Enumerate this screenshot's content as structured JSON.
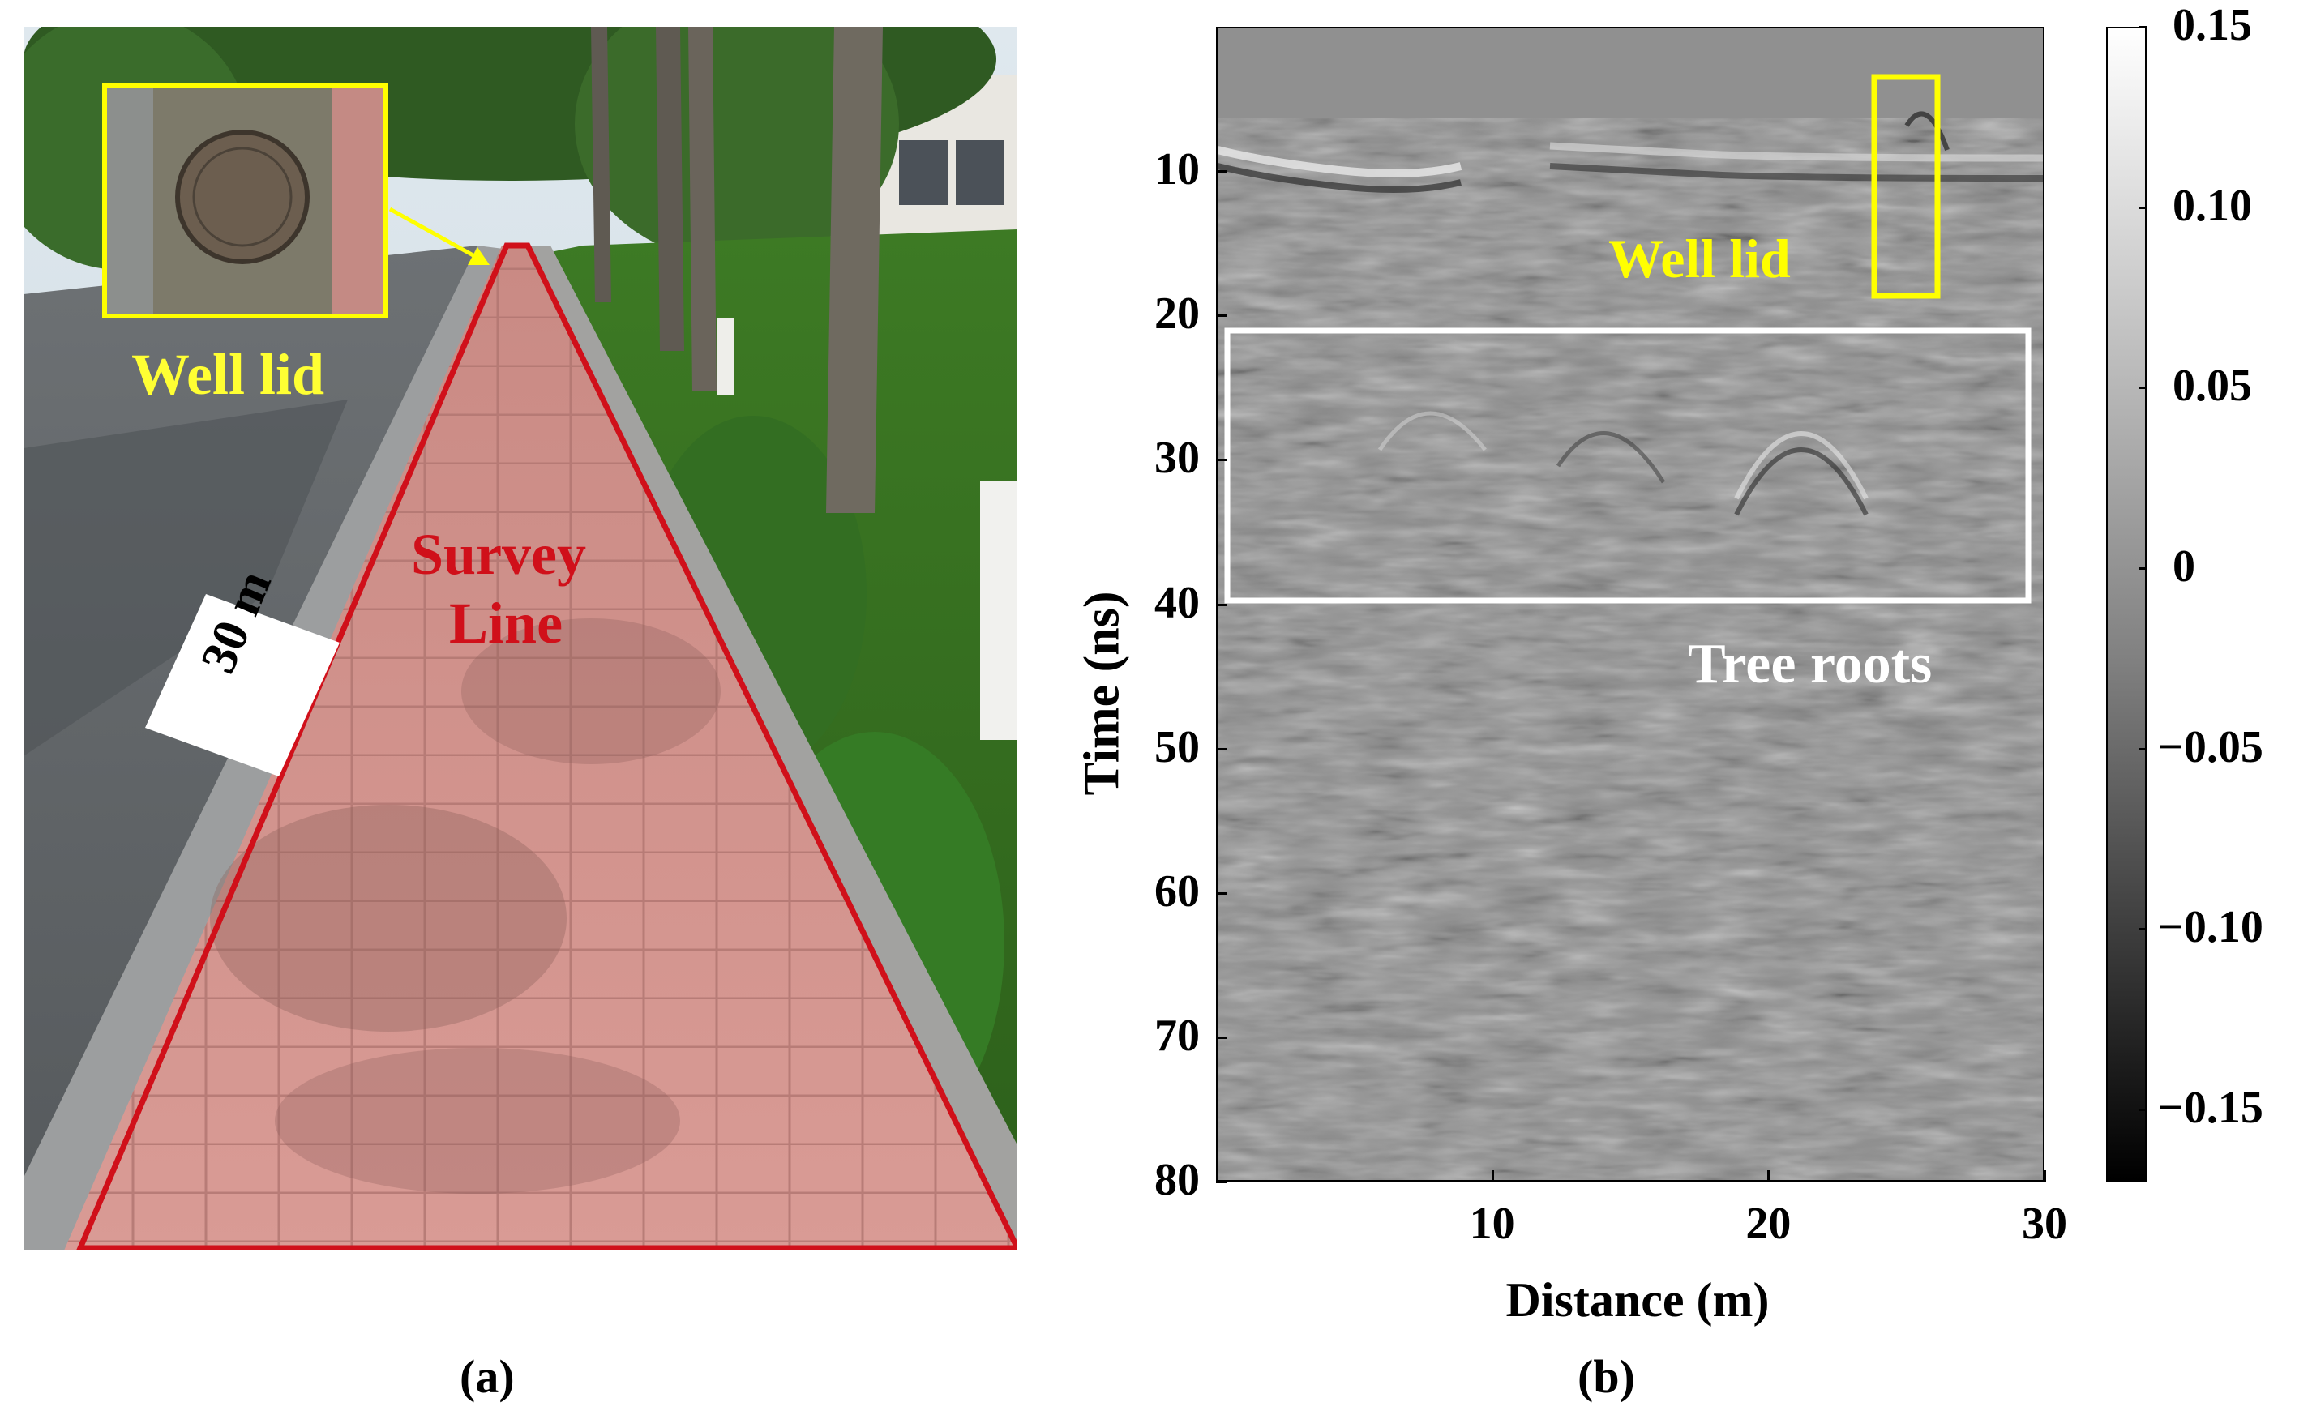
{
  "panel_a": {
    "caption": "(a)",
    "inset_label": "Well lid",
    "survey_label_line1": "Survey",
    "survey_label_line2": "Line",
    "distance_label": "30 m",
    "colors": {
      "survey_outline": "#d0101a",
      "inset_frame": "#ffff00",
      "text_yellow": "#ffff33",
      "text_red": "#d0101a"
    }
  },
  "panel_b": {
    "caption": "(b)",
    "well_lid_label": "Well lid",
    "tree_roots_label": "Tree roots",
    "colors": {
      "well_box": "#ffff00",
      "roots_box": "#ffffff"
    }
  },
  "chart_data": {
    "type": "heatmap",
    "xlabel": "Distance (m)",
    "ylabel": "Time (ns)",
    "xlim": [
      0,
      30
    ],
    "ylim": [
      80,
      0
    ],
    "x_ticks": [
      "10",
      "20",
      "30"
    ],
    "y_ticks": [
      "10",
      "20",
      "30",
      "40",
      "50",
      "60",
      "70",
      "80"
    ],
    "colorbar": {
      "range": [
        -0.17,
        0.15
      ],
      "ticks": [
        "0.15",
        "0.10",
        "0.05",
        "0",
        "−0.05",
        "−0.10",
        "−0.15"
      ],
      "colormap": "gray"
    },
    "annotations": [
      {
        "label": "Well lid",
        "x_range": [
          24.2,
          26.5
        ],
        "y_range": [
          4,
          19
        ]
      },
      {
        "label": "Tree roots",
        "x_range": [
          0.5,
          29.6
        ],
        "y_range": [
          21,
          39.5
        ]
      }
    ]
  }
}
